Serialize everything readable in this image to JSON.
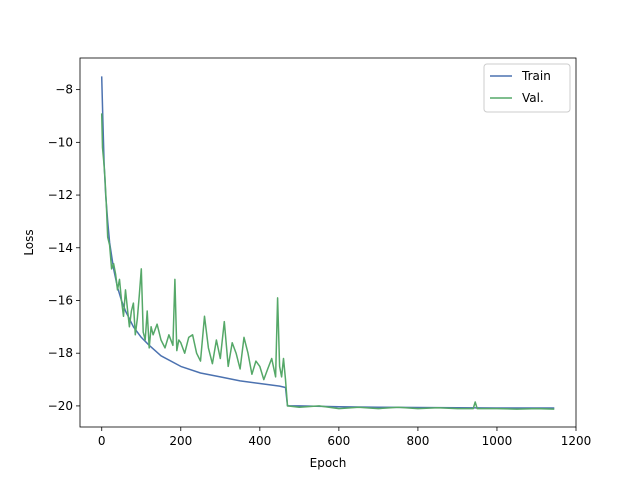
{
  "chart_data": {
    "type": "line",
    "title": "",
    "xlabel": "Epoch",
    "ylabel": "Loss",
    "xlim": [
      -55,
      1200
    ],
    "ylim": [
      -20.8,
      -6.8
    ],
    "xticks": [
      0,
      200,
      400,
      600,
      800,
      1000,
      1200
    ],
    "xtick_labels": [
      "0",
      "200",
      "400",
      "600",
      "800",
      "1000",
      "1200"
    ],
    "yticks": [
      -8,
      -10,
      -12,
      -14,
      -16,
      -18,
      -20
    ],
    "ytick_labels": [
      "−8",
      "−10",
      "−12",
      "−14",
      "−16",
      "−18",
      "−20"
    ],
    "grid": false,
    "legend_position": "top-right",
    "series": [
      {
        "name": "Train",
        "color": "#4c72b0",
        "x": [
          0,
          3,
          6,
          10,
          15,
          20,
          30,
          40,
          50,
          60,
          80,
          100,
          120,
          150,
          200,
          250,
          300,
          350,
          400,
          450,
          465,
          470,
          500,
          600,
          700,
          800,
          900,
          1000,
          1100,
          1145
        ],
        "y": [
          -7.5,
          -9.2,
          -10.8,
          -12.0,
          -13.0,
          -13.8,
          -14.8,
          -15.5,
          -16.0,
          -16.4,
          -17.0,
          -17.4,
          -17.7,
          -18.1,
          -18.5,
          -18.75,
          -18.9,
          -19.05,
          -19.15,
          -19.25,
          -19.3,
          -20.0,
          -20.0,
          -20.03,
          -20.05,
          -20.06,
          -20.07,
          -20.08,
          -20.08,
          -20.08
        ]
      },
      {
        "name": "Val.",
        "color": "#55a868",
        "x": [
          0,
          2,
          5,
          8,
          12,
          15,
          20,
          25,
          30,
          35,
          40,
          45,
          50,
          55,
          60,
          65,
          70,
          75,
          80,
          85,
          90,
          95,
          100,
          105,
          110,
          115,
          120,
          125,
          130,
          140,
          150,
          160,
          170,
          180,
          185,
          190,
          195,
          200,
          210,
          220,
          230,
          240,
          250,
          260,
          270,
          280,
          290,
          300,
          310,
          320,
          330,
          340,
          350,
          360,
          370,
          380,
          390,
          400,
          410,
          420,
          430,
          440,
          445,
          450,
          455,
          460,
          465,
          470,
          500,
          550,
          600,
          650,
          700,
          750,
          800,
          850,
          900,
          940,
          945,
          950,
          1000,
          1050,
          1100,
          1145
        ],
        "y": [
          -8.9,
          -10.2,
          -10.7,
          -11.3,
          -12.5,
          -13.6,
          -13.9,
          -14.8,
          -14.6,
          -15.0,
          -15.6,
          -15.2,
          -16.0,
          -16.6,
          -15.6,
          -16.3,
          -17.0,
          -16.4,
          -16.1,
          -17.3,
          -16.7,
          -15.8,
          -14.8,
          -17.2,
          -17.5,
          -16.4,
          -17.8,
          -17.0,
          -17.3,
          -16.9,
          -17.5,
          -17.8,
          -17.3,
          -17.7,
          -15.2,
          -17.9,
          -17.5,
          -17.6,
          -18.0,
          -17.4,
          -17.3,
          -18.0,
          -18.3,
          -16.6,
          -17.8,
          -18.4,
          -17.5,
          -18.2,
          -16.8,
          -18.5,
          -17.6,
          -18.0,
          -18.6,
          -17.4,
          -18.0,
          -18.8,
          -18.3,
          -18.5,
          -19.0,
          -18.6,
          -18.2,
          -18.9,
          -15.9,
          -18.5,
          -18.9,
          -18.2,
          -19.0,
          -20.0,
          -20.05,
          -20.0,
          -20.1,
          -20.05,
          -20.1,
          -20.05,
          -20.1,
          -20.07,
          -20.1,
          -20.1,
          -19.85,
          -20.1,
          -20.1,
          -20.12,
          -20.1,
          -20.12
        ]
      }
    ]
  }
}
